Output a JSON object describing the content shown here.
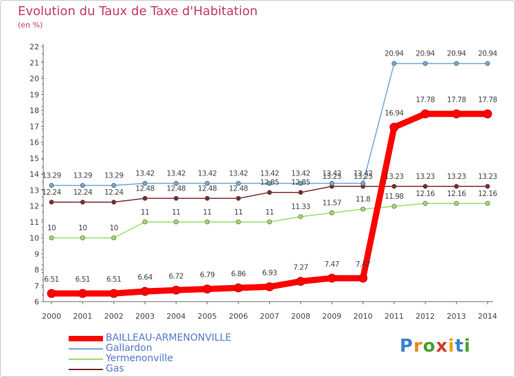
{
  "title": "Evolution du Taux de Taxe d'Habitation",
  "subtitle": "(en %)",
  "brand": {
    "text": "Proxiti",
    "letter_colors": [
      "#3a7fd0",
      "#e88a1a",
      "#4aa02a",
      "#d33a2a",
      "#e8a11a",
      "#3a7fd0",
      "#4aa02a"
    ]
  },
  "chart_data": {
    "type": "line",
    "title": "Evolution du Taux de Taxe d'Habitation",
    "ylabel": "(en %)",
    "xlabel": "",
    "x": [
      "2000",
      "2001",
      "2002",
      "2003",
      "2004",
      "2005",
      "2006",
      "2007",
      "2008",
      "2009",
      "2010",
      "2011",
      "2012",
      "2013",
      "2014"
    ],
    "ylim": [
      6,
      22
    ],
    "yticks": [
      "6",
      "7",
      "8",
      "9",
      "10",
      "11",
      "12",
      "13",
      "14",
      "15",
      "16",
      "17",
      "18",
      "19",
      "20",
      "21",
      "22"
    ],
    "grid": false,
    "legend": "bottom-left",
    "series": [
      {
        "name": "BAILLEAU-ARMENONVILLE",
        "color": "#ff0000",
        "values": [
          6.51,
          6.51,
          6.51,
          6.64,
          6.72,
          6.79,
          6.86,
          6.93,
          7.27,
          7.47,
          7.47,
          16.94,
          17.78,
          17.78,
          17.78
        ],
        "labels": [
          "6.51",
          "6.51",
          "6.51",
          "6.64",
          "6.72",
          "6.79",
          "6.86",
          "6.93",
          "7.27",
          "7.47",
          "7.47",
          "16.94",
          "17.78",
          "17.78",
          "17.78"
        ]
      },
      {
        "name": "Gallardon",
        "color": "#6fa8d8",
        "values": [
          13.29,
          13.29,
          13.29,
          13.42,
          13.42,
          13.42,
          13.42,
          13.42,
          13.42,
          13.42,
          13.42,
          20.94,
          20.94,
          20.94,
          20.94
        ],
        "labels": [
          "13.29",
          "13.29",
          "13.29",
          "13.42",
          "13.42",
          "13.42",
          "13.42",
          "13.42",
          "13.42",
          "13.42",
          "13.42",
          "20.94",
          "20.94",
          "20.94",
          "20.94"
        ]
      },
      {
        "name": "Yermenonville",
        "color": "#99dd66",
        "values": [
          10,
          10,
          10,
          11,
          11,
          11,
          11,
          11,
          11.33,
          11.57,
          11.8,
          11.98,
          12.16,
          12.16,
          12.16
        ],
        "labels": [
          "10",
          "10",
          "10",
          "11",
          "11",
          "11",
          "11",
          "11",
          "11.33",
          "11.57",
          "11.8",
          "11.98",
          "12.16",
          "12.16",
          "12.16"
        ]
      },
      {
        "name": "Gas",
        "color": "#7a2a2a",
        "values": [
          12.24,
          12.24,
          12.24,
          12.48,
          12.48,
          12.48,
          12.48,
          12.85,
          12.85,
          13.23,
          13.23,
          13.23,
          13.23,
          13.23,
          13.23
        ],
        "labels": [
          "12.24",
          "12.24",
          "12.24",
          "12.48",
          "12.48",
          "12.48",
          "12.48",
          "12.85",
          "12.85",
          "13.23",
          "13.23",
          "13.23",
          "13.23",
          "13.23",
          "13.23"
        ]
      }
    ]
  }
}
